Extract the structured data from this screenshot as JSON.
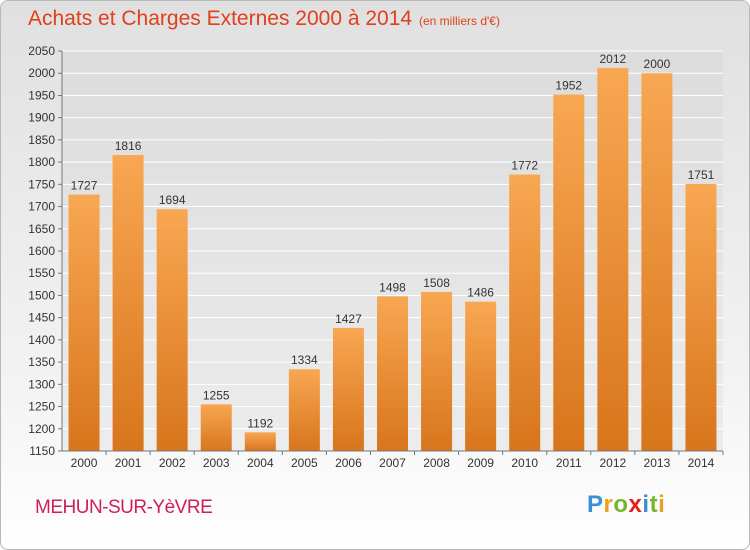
{
  "header": {
    "title": "Achats et Charges Externes 2000 à 2014",
    "subtitle": "(en milliers d'€)"
  },
  "footer": {
    "commune": "MEHUN-SUR-YèVRE",
    "logo_letters": [
      {
        "ch": "P",
        "color": "#3b8fd6"
      },
      {
        "ch": "r",
        "color": "#e8a21b"
      },
      {
        "ch": "o",
        "color": "#76b82a"
      },
      {
        "ch": "x",
        "color": "#e2231a"
      },
      {
        "ch": "i",
        "color": "#3b8fd6"
      },
      {
        "ch": "t",
        "color": "#76b82a"
      },
      {
        "ch": "i",
        "color": "#e8a21b"
      }
    ]
  },
  "colors": {
    "bar_top": "#f8a752",
    "bar_bottom": "#d8751c",
    "grid": "#ffffff",
    "axis": "#777777",
    "text": "#333333"
  },
  "chart_data": {
    "type": "bar",
    "title": "Achats et Charges Externes 2000 à 2014",
    "subtitle": "(en milliers d'€)",
    "categories": [
      "2000",
      "2001",
      "2002",
      "2003",
      "2004",
      "2005",
      "2006",
      "2007",
      "2008",
      "2009",
      "2010",
      "2011",
      "2012",
      "2013",
      "2014"
    ],
    "values": [
      1727,
      1816,
      1694,
      1255,
      1192,
      1334,
      1427,
      1498,
      1508,
      1486,
      1772,
      1952,
      2012,
      2000,
      1751
    ],
    "ylim": [
      1150,
      2050
    ],
    "yticks": [
      1150,
      1200,
      1250,
      1300,
      1350,
      1400,
      1450,
      1500,
      1550,
      1600,
      1650,
      1700,
      1750,
      1800,
      1850,
      1900,
      1950,
      2000,
      2050
    ],
    "grid": true,
    "data_labels": true
  }
}
